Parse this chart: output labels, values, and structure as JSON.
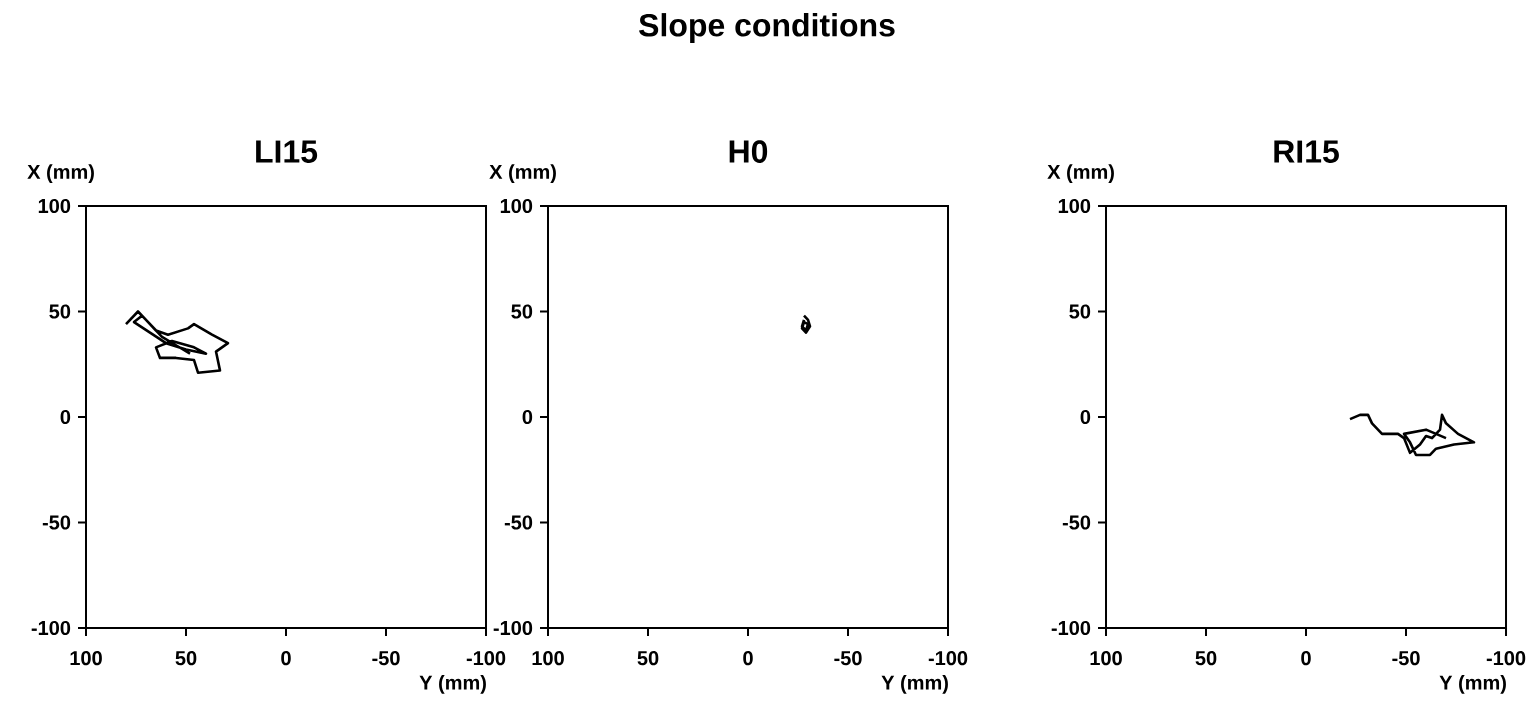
{
  "chart_data": [
    {
      "type": "line",
      "title": "LI15",
      "annotations": [
        "Slope conditions"
      ],
      "xlabel": "Y (mm)",
      "ylabel": "X (mm)",
      "xlim": [
        100,
        -100
      ],
      "ylim": [
        -100,
        100
      ],
      "xticks": [
        100,
        50,
        0,
        -50,
        -100
      ],
      "yticks": [
        -100,
        -50,
        0,
        50,
        100
      ],
      "series": [
        {
          "color": "#000000",
          "x": [
            80,
            74,
            70,
            65,
            59,
            49,
            46,
            37,
            29,
            35,
            33,
            44,
            46,
            55,
            63,
            65,
            57,
            46,
            40,
            50,
            60,
            68,
            76,
            72,
            62,
            55,
            48
          ],
          "values": [
            44,
            50,
            46,
            41,
            39,
            42,
            44,
            39,
            35,
            31,
            22,
            21,
            27,
            28,
            28,
            33,
            36,
            33,
            30,
            32,
            35,
            40,
            45,
            48,
            38,
            34,
            30
          ]
        }
      ]
    },
    {
      "type": "line",
      "title": "H0",
      "xlabel": "Y (mm)",
      "ylabel": "X (mm)",
      "xlim": [
        100,
        -100
      ],
      "ylim": [
        -100,
        100
      ],
      "xticks": [
        100,
        50,
        0,
        -50,
        -100
      ],
      "yticks": [
        -100,
        -50,
        0,
        50,
        100
      ],
      "series": [
        {
          "color": "#000000",
          "x": [
            -28,
            -30,
            -31,
            -29,
            -27,
            -28,
            -30,
            -29,
            -27,
            -28
          ],
          "values": [
            48,
            46,
            43,
            40,
            42,
            45,
            44,
            41,
            43,
            46
          ]
        }
      ]
    },
    {
      "type": "line",
      "title": "RI15",
      "xlabel": "Y (mm)",
      "ylabel": "X (mm)",
      "xlim": [
        100,
        -100
      ],
      "ylim": [
        -100,
        100
      ],
      "xticks": [
        100,
        50,
        0,
        -50,
        -100
      ],
      "yticks": [
        -100,
        -50,
        0,
        50,
        100
      ],
      "series": [
        {
          "color": "#000000",
          "x": [
            -22,
            -27,
            -31,
            -33,
            -38,
            -46,
            -49,
            -52,
            -57,
            -60,
            -63,
            -67,
            -68,
            -70,
            -76,
            -84,
            -74,
            -65,
            -62,
            -55,
            -52,
            -49,
            -60,
            -70
          ],
          "values": [
            -1,
            1,
            1,
            -3,
            -8,
            -8,
            -10,
            -17,
            -13,
            -9,
            -10,
            -6,
            1,
            -3,
            -8,
            -12,
            -13,
            -15,
            -18,
            -18,
            -12,
            -8,
            -6,
            -10
          ]
        }
      ]
    }
  ]
}
